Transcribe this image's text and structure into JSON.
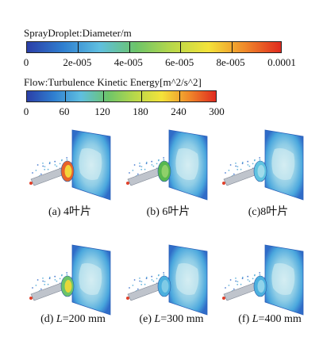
{
  "legends": [
    {
      "title": "SprayDroplet:Diameter/m",
      "ticks": [
        "0",
        "2e-005",
        "4e-005",
        "6e-005",
        "8e-005",
        "0.0001"
      ],
      "colors": [
        "#2b3fa8",
        "#2f7fd0",
        "#5fbfe0",
        "#6cc46a",
        "#b8d84a",
        "#f4e33a",
        "#f08a2a",
        "#e02a1f"
      ]
    },
    {
      "title": "Flow:Turbulence Kinetic Energy[m^2/s^2]",
      "ticks": [
        "0",
        "60",
        "120",
        "180",
        "240",
        "300"
      ],
      "colors": [
        "#2b3fa8",
        "#2f7fd0",
        "#5fbfe0",
        "#6cc46a",
        "#b8d84a",
        "#f4e33a",
        "#f08a2a",
        "#e02a1f"
      ]
    }
  ],
  "panels": [
    {
      "caption_prefix": "(a) ",
      "caption_text": "4叶片",
      "caption_var": "",
      "ring": "#e8622a",
      "ring_inner": "#f4d43a"
    },
    {
      "caption_prefix": "(b) ",
      "caption_text": "6叶片",
      "caption_var": "",
      "ring": "#57b84f",
      "ring_inner": "#8fd06a"
    },
    {
      "caption_prefix": "(c)",
      "caption_text": "8叶片",
      "caption_var": "",
      "ring": "#5fc3e0",
      "ring_inner": "#9fdbea"
    },
    {
      "caption_prefix": "(d) ",
      "caption_text": "=200 mm",
      "caption_var": "L",
      "ring": "#6cc46a",
      "ring_inner": "#e6d83a"
    },
    {
      "caption_prefix": "(e) ",
      "caption_text": "=300 mm",
      "caption_var": "L",
      "ring": "#4cb0de",
      "ring_inner": "#7fcbe6"
    },
    {
      "caption_prefix": "(f) ",
      "caption_text": "=400 mm",
      "caption_var": "L",
      "ring": "#4cb0de",
      "ring_inner": "#8fd3ea"
    }
  ]
}
